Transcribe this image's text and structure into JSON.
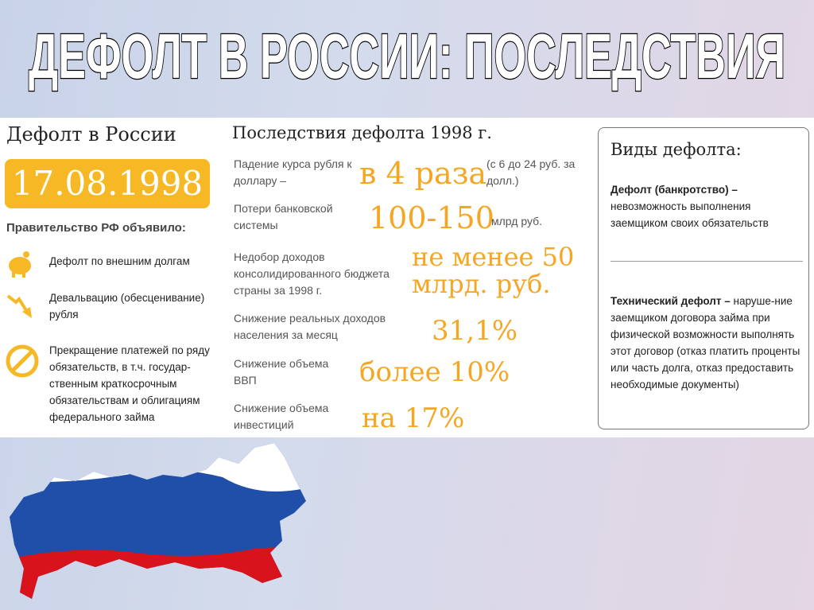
{
  "title": "ДЕФОЛТ В РОССИИ: ПОСЛЕДСТВИЯ",
  "left": {
    "heading": "Дефолт в России",
    "date": "17.08.1998",
    "announced": "Правительство РФ объявило:",
    "items": [
      {
        "icon": "piggy-bank-icon",
        "text": "Дефолт по внешним долгам"
      },
      {
        "icon": "down-trend-arrow-icon",
        "text": "Девальвацию (обесценивание) рубля"
      },
      {
        "icon": "prohibited-icon",
        "text": "Прекращение платежей по ряду обязательств, в т.ч. государ-ственным краткосрочным обязательствам и облигациям федерального займа"
      }
    ]
  },
  "middle": {
    "heading": "Последствия дефолта 1998 г.",
    "rows": [
      {
        "label": "Падение курса рубля к доллару –",
        "value": "в 4 раза",
        "note": "(с 6 до 24 руб. за долл.)"
      },
      {
        "label": "Потери банковской системы",
        "value": "100-150",
        "note": "млрд руб."
      },
      {
        "label": "Недобор доходов консолидированного бюджета страны за 1998 г.",
        "value": "не менее 50 млрд. руб."
      },
      {
        "label": "Снижение реальных доходов населения за месяц",
        "value": "31,1%"
      },
      {
        "label": "Снижение объема ВВП",
        "value": "более 10%"
      },
      {
        "label": "Снижение объема инвестиций",
        "value": "на 17%"
      }
    ]
  },
  "right": {
    "heading": "Виды дефолта:",
    "types": [
      {
        "term": "Дефолт (банкротство) –",
        "definition": "невозможность выполнения заемщиком своих обязательств"
      },
      {
        "term": "Технический дефолт –",
        "definition": "наруше-ние заемщиком договора займа при физической возможности выполнять этот договор (отказ платить проценты или часть долга, отказ предоставить необходимые документы)"
      }
    ]
  },
  "colors": {
    "accent": "#f5a623",
    "flag_white": "#ffffff",
    "flag_blue": "#1f4fa8",
    "flag_red": "#d8131b"
  }
}
